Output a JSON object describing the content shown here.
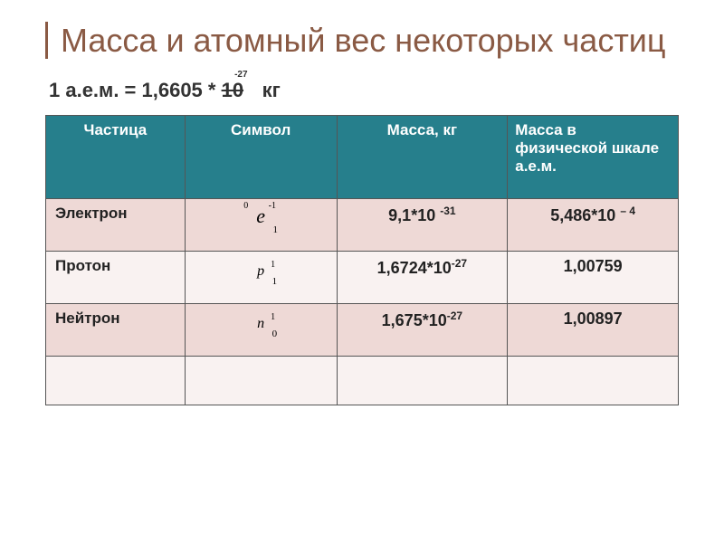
{
  "title": "Масса и атомный вес некоторых частиц",
  "subtitle_prefix": "1 а.е.м. = 1,6605 * ",
  "subtitle_struck": "10",
  "subtitle_suffix": "   кг",
  "header_sup": "-27",
  "table": {
    "header_bg": "#267f8c",
    "header_fg": "#ffffff",
    "row_even_bg": "#eed9d6",
    "row_odd_bg": "#f9f2f1",
    "columns": [
      "Частица",
      "Символ",
      "Масса, кг",
      "Масса в физической шкале  а.е.м."
    ],
    "rows": [
      {
        "name": "Электрон",
        "symbol": {
          "letter": "e",
          "pre_top": "0",
          "pre_bot": "",
          "post_top": "-1",
          "post_bot": "1"
        },
        "mass_kg_base": "9,1*10 ",
        "mass_kg_exp": "-31",
        "amu_base": "5,486*10 ",
        "amu_exp": "– 4"
      },
      {
        "name": "Протон",
        "symbol": {
          "letter": "p",
          "pre_top": "",
          "pre_bot": "",
          "post_top": "1",
          "post_bot": "1"
        },
        "mass_kg_base": "1,6724*10",
        "mass_kg_exp": "-27",
        "amu_base": "1,00759",
        "amu_exp": ""
      },
      {
        "name": "Нейтрон",
        "symbol": {
          "letter": "n",
          "pre_top": "",
          "pre_bot": "",
          "post_top": "1",
          "post_bot": "0"
        },
        "mass_kg_base": "1,675*10",
        "mass_kg_exp": "-27",
        "amu_base": "1,00897",
        "amu_exp": ""
      }
    ]
  },
  "colors": {
    "title": "#8a5a44",
    "border": "#555555"
  }
}
